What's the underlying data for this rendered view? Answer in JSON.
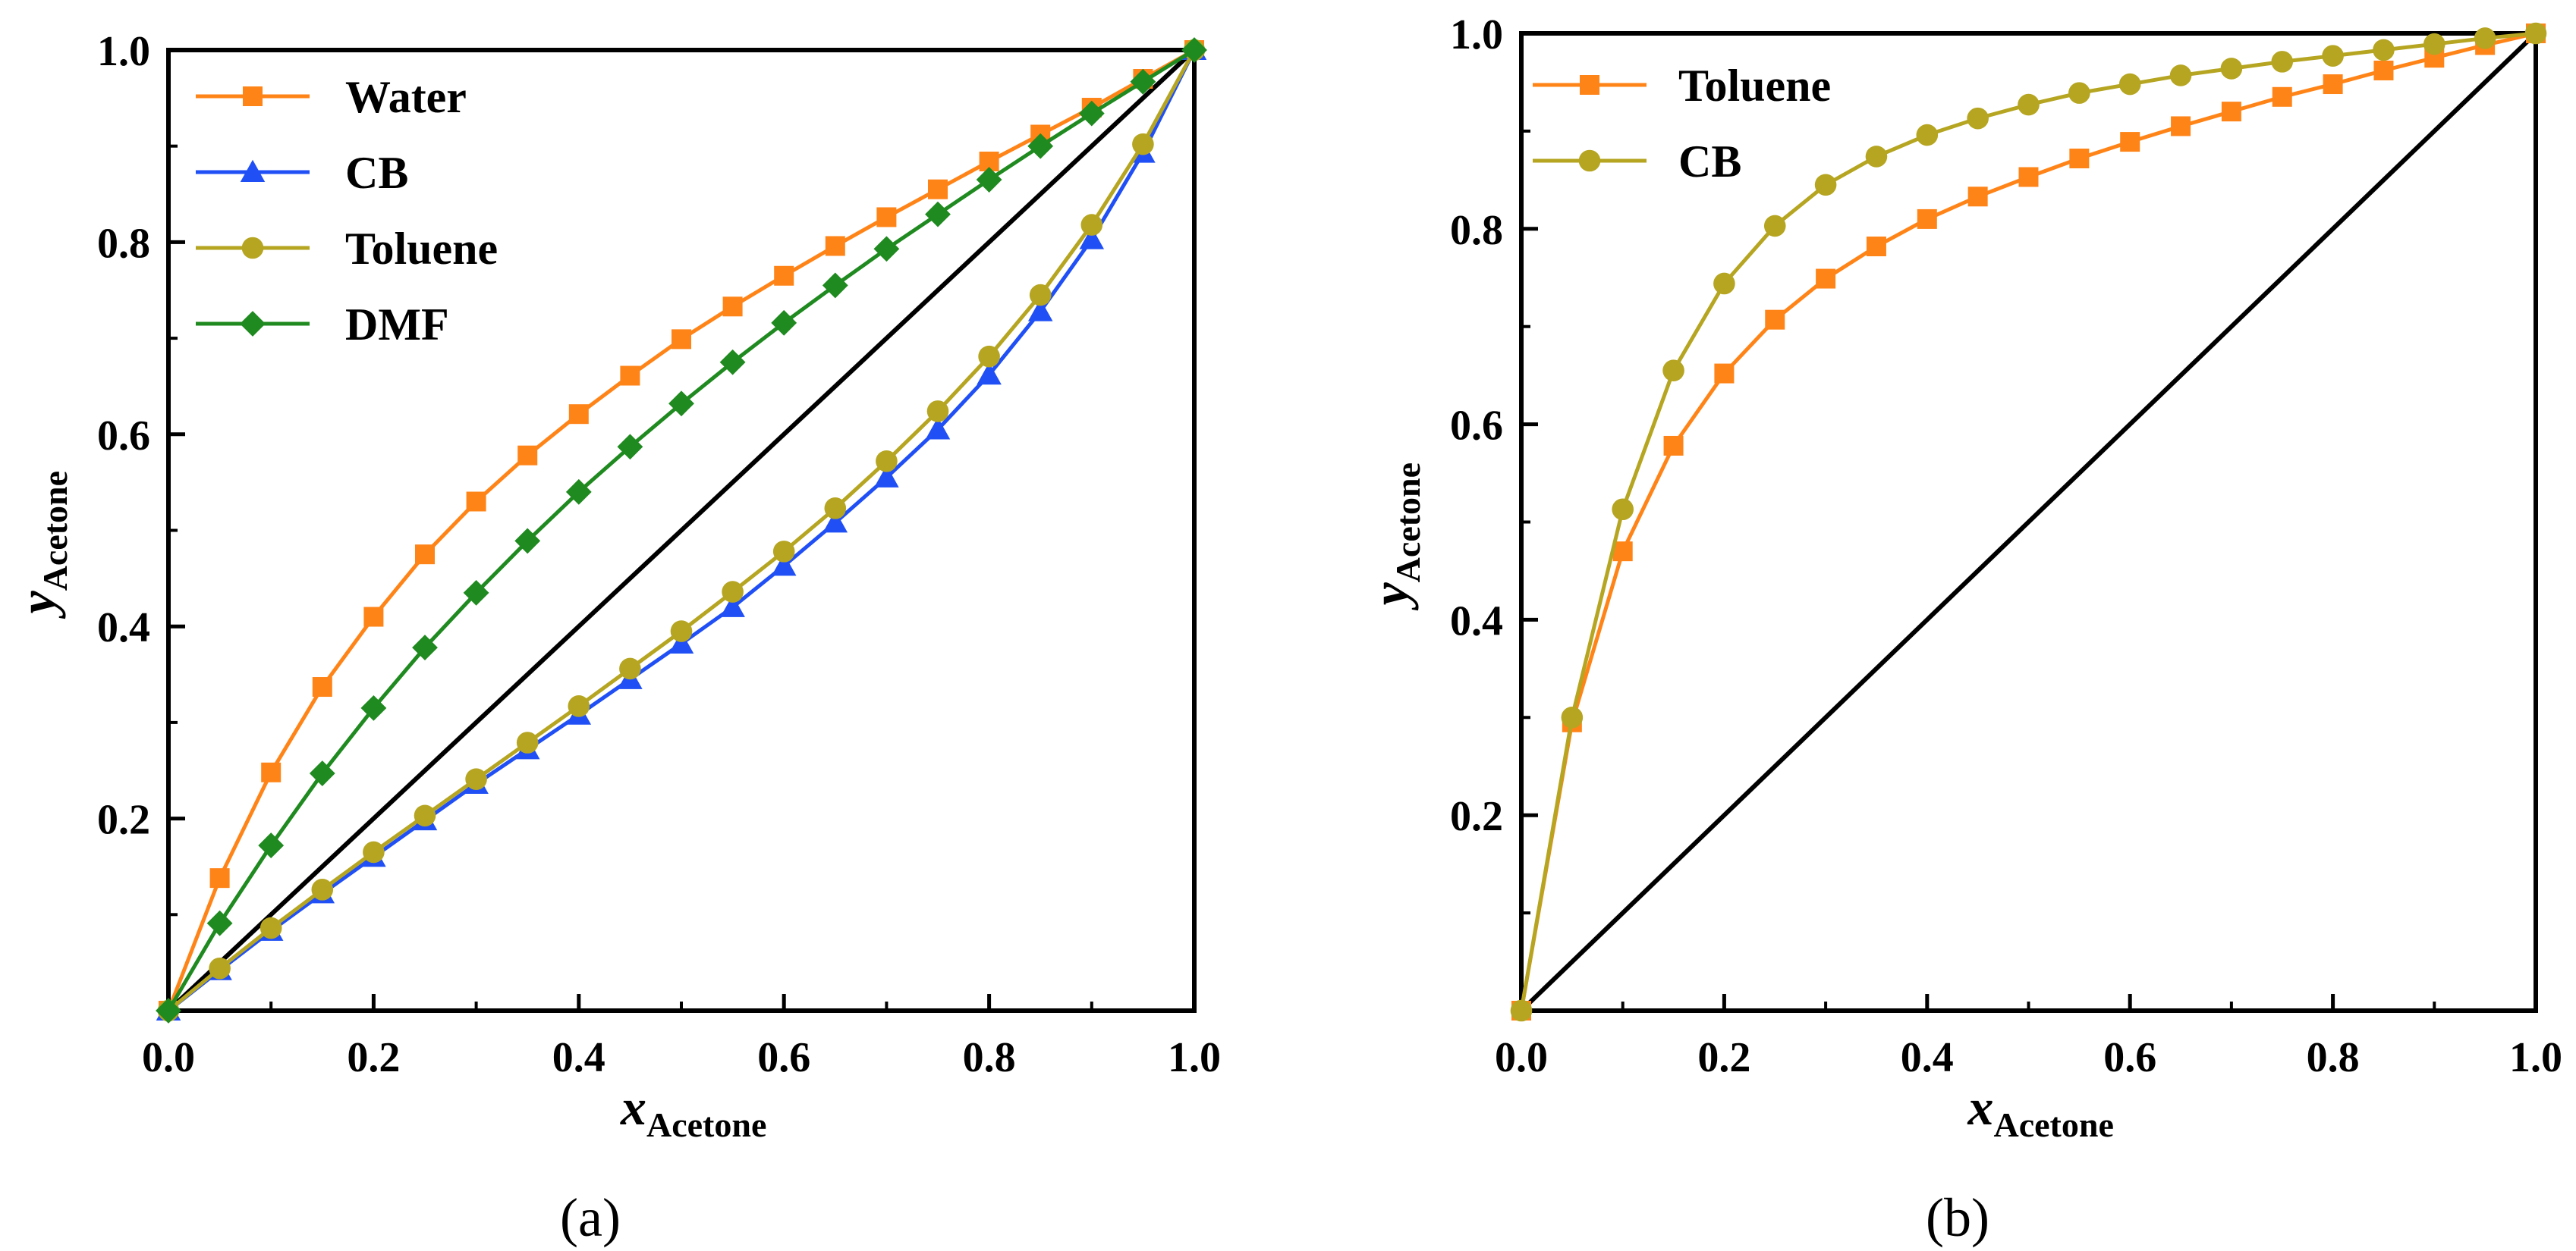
{
  "chart_data": [
    {
      "panel_label": "(a)",
      "type": "line",
      "xlabel": "x",
      "xlabel_sub": "Acetone",
      "ylabel": "y",
      "ylabel_sub": "Acetone",
      "xlim": [
        0,
        1
      ],
      "ylim": [
        0,
        1
      ],
      "x_ticks": [
        0,
        0.2,
        0.4,
        0.6,
        0.8,
        1.0
      ],
      "x_tick_labels": [
        "0.0",
        "0.2",
        "0.4",
        "0.6",
        "0.8",
        "1.0"
      ],
      "y_ticks": [
        0.2,
        0.4,
        0.6,
        0.8,
        1.0
      ],
      "y_tick_labels": [
        "0.2",
        "0.4",
        "0.6",
        "0.8",
        "1.0"
      ],
      "legend_position": "top-left",
      "diagonal": {
        "x": [
          0,
          1
        ],
        "y": [
          0,
          1
        ],
        "color": "#000000"
      },
      "x": [
        0,
        0.05,
        0.1,
        0.15,
        0.2,
        0.25,
        0.3,
        0.35,
        0.4,
        0.45,
        0.5,
        0.55,
        0.6,
        0.65,
        0.7,
        0.75,
        0.8,
        0.85,
        0.9,
        0.95,
        1.0
      ],
      "series": [
        {
          "name": "Water",
          "color": "#ff8418",
          "marker": "square",
          "values": [
            0,
            0.138,
            0.248,
            0.337,
            0.41,
            0.475,
            0.53,
            0.578,
            0.621,
            0.661,
            0.699,
            0.733,
            0.765,
            0.796,
            0.826,
            0.855,
            0.884,
            0.912,
            0.94,
            0.97,
            1.0
          ]
        },
        {
          "name": "CB",
          "color": "#1f4ff5",
          "marker": "triangle",
          "values": [
            0,
            0.042,
            0.083,
            0.122,
            0.16,
            0.198,
            0.236,
            0.272,
            0.308,
            0.345,
            0.382,
            0.42,
            0.463,
            0.508,
            0.555,
            0.605,
            0.662,
            0.728,
            0.803,
            0.893,
            1.0
          ]
        },
        {
          "name": "Toluene",
          "color": "#b5a521",
          "marker": "circle",
          "values": [
            0,
            0.044,
            0.086,
            0.126,
            0.165,
            0.203,
            0.241,
            0.279,
            0.317,
            0.356,
            0.395,
            0.436,
            0.478,
            0.523,
            0.572,
            0.624,
            0.681,
            0.745,
            0.818,
            0.902,
            1.0
          ]
        },
        {
          "name": "DMF",
          "color": "#1f8a1f",
          "marker": "diamond",
          "values": [
            0,
            0.091,
            0.172,
            0.247,
            0.315,
            0.378,
            0.435,
            0.489,
            0.54,
            0.587,
            0.632,
            0.675,
            0.716,
            0.755,
            0.793,
            0.829,
            0.865,
            0.9,
            0.934,
            0.967,
            1.0
          ]
        }
      ]
    },
    {
      "panel_label": "(b)",
      "type": "line",
      "xlabel": "x",
      "xlabel_sub": "Acetone",
      "ylabel": "y",
      "ylabel_sub": "Acetone",
      "xlim": [
        0,
        1
      ],
      "ylim": [
        0,
        1
      ],
      "x_ticks": [
        0,
        0.2,
        0.4,
        0.6,
        0.8,
        1.0
      ],
      "x_tick_labels": [
        "0.0",
        "0.2",
        "0.4",
        "0.6",
        "0.8",
        "1.0"
      ],
      "y_ticks": [
        0.2,
        0.4,
        0.6,
        0.8,
        1.0
      ],
      "y_tick_labels": [
        "0.2",
        "0.4",
        "0.6",
        "0.8",
        "1.0"
      ],
      "legend_position": "top-left",
      "diagonal": {
        "x": [
          0,
          1
        ],
        "y": [
          0,
          1
        ],
        "color": "#000000"
      },
      "x": [
        0,
        0.05,
        0.1,
        0.15,
        0.2,
        0.25,
        0.3,
        0.35,
        0.4,
        0.45,
        0.5,
        0.55,
        0.6,
        0.65,
        0.7,
        0.75,
        0.8,
        0.85,
        0.9,
        0.95,
        1.0
      ],
      "series": [
        {
          "name": "Toluene",
          "color": "#ff8418",
          "marker": "square",
          "values": [
            0,
            0.295,
            0.47,
            0.578,
            0.652,
            0.707,
            0.749,
            0.782,
            0.81,
            0.833,
            0.853,
            0.872,
            0.889,
            0.905,
            0.92,
            0.935,
            0.948,
            0.962,
            0.975,
            0.988,
            1.0
          ]
        },
        {
          "name": "CB",
          "color": "#b5a521",
          "marker": "circle",
          "values": [
            0,
            0.3,
            0.513,
            0.655,
            0.744,
            0.803,
            0.845,
            0.874,
            0.896,
            0.913,
            0.927,
            0.939,
            0.948,
            0.957,
            0.964,
            0.971,
            0.977,
            0.983,
            0.989,
            0.995,
            1.0
          ]
        }
      ]
    }
  ]
}
